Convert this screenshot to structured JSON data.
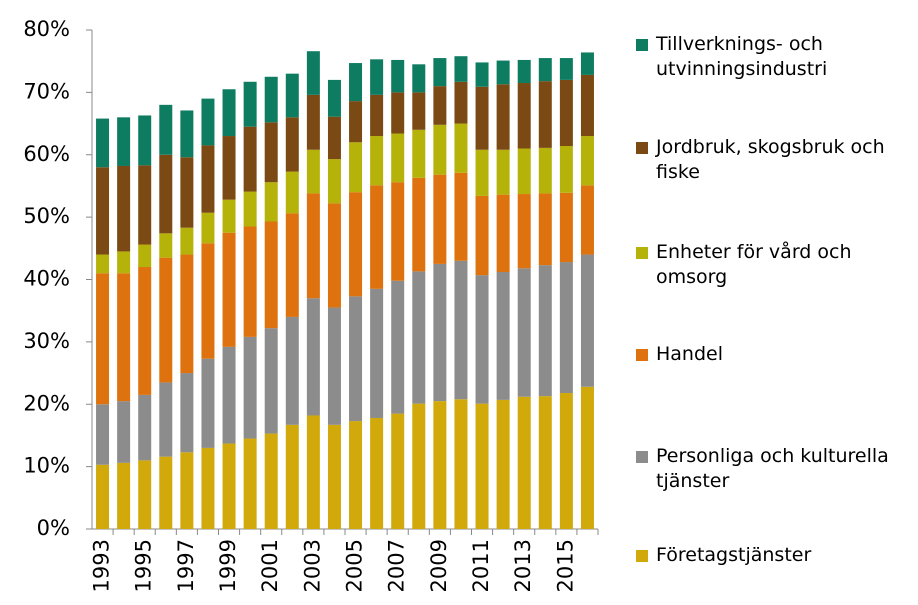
{
  "chart_data": {
    "type": "stacked_bar",
    "categories": [
      "1993",
      null,
      "1995",
      null,
      "1997",
      null,
      "1999",
      null,
      "2001",
      null,
      "2003",
      null,
      "2005",
      null,
      "2007",
      null,
      "2009",
      null,
      "2011",
      null,
      "2013",
      null,
      "2015",
      null
    ],
    "series": [
      {
        "name": "Företagstjänster",
        "color": "#d1a90a",
        "values": [
          10.3,
          10.6,
          11,
          11.6,
          12.3,
          13,
          13.7,
          14.5,
          15.3,
          16.7,
          18.2,
          16.7,
          17.3,
          17.8,
          18.5,
          20.1,
          20.5,
          20.8,
          20.1,
          20.7,
          21.2,
          21.3,
          21.8,
          22.8
        ]
      },
      {
        "name": "Personliga och kulturella tjänster",
        "color": "#8c8c8c",
        "values": [
          9.7,
          9.9,
          10.5,
          11.9,
          12.7,
          14.3,
          15.5,
          16.3,
          16.9,
          17.3,
          18.8,
          18.8,
          20,
          20.7,
          21.3,
          21.2,
          22,
          22.2,
          20.6,
          20.5,
          20.6,
          21,
          21,
          21.2
        ]
      },
      {
        "name": "Handel",
        "color": "#dd720e",
        "values": [
          21,
          20.5,
          20.5,
          20,
          19,
          18.5,
          18.3,
          17.7,
          17.1,
          16.6,
          16.8,
          16.7,
          16.7,
          16.6,
          15.8,
          15,
          14.3,
          14.1,
          12.7,
          12.4,
          11.9,
          11.5,
          11.1,
          11.1
        ]
      },
      {
        "name": "Enheter för vård och omsorg",
        "color": "#b5b20a",
        "values": [
          3,
          3.5,
          3.6,
          3.9,
          4.3,
          4.9,
          5.3,
          5.6,
          6.3,
          6.7,
          7,
          7.1,
          8,
          7.9,
          7.8,
          7.7,
          8,
          7.9,
          7.4,
          7.2,
          7.3,
          7.3,
          7.5,
          7.9
        ]
      },
      {
        "name": "Jordbruk, skogsbruk och fiske",
        "color": "#7b4a14",
        "values": [
          14,
          13.7,
          12.7,
          12.6,
          11.3,
          10.8,
          10.2,
          10.4,
          9.6,
          8.7,
          8.8,
          6.8,
          6.6,
          6.6,
          6.6,
          6,
          6.2,
          6.7,
          10.1,
          10.5,
          10.5,
          10.7,
          10.6,
          9.8
        ]
      },
      {
        "name": "Tillverknings- och utvinningsindustri",
        "color": "#0e7c61",
        "values": [
          7.8,
          7.8,
          8,
          8,
          7.5,
          7.5,
          7.5,
          7.2,
          7.3,
          7,
          7,
          5.9,
          6.1,
          5.7,
          5.2,
          4.5,
          4.5,
          4.1,
          3.9,
          3.8,
          3.7,
          3.7,
          3.5,
          3.6
        ]
      }
    ],
    "ylim": [
      0,
      80
    ],
    "yticks": [
      {
        "value": 0,
        "label": "0%"
      },
      {
        "value": 10,
        "label": "10%"
      },
      {
        "value": 20,
        "label": "20%"
      },
      {
        "value": 30,
        "label": "30%"
      },
      {
        "value": 40,
        "label": "40%"
      },
      {
        "value": 50,
        "label": "50%"
      },
      {
        "value": 60,
        "label": "60%"
      },
      {
        "value": 70,
        "label": "70%"
      },
      {
        "value": 80,
        "label": "80%"
      }
    ],
    "grid": false,
    "legend": "right"
  }
}
